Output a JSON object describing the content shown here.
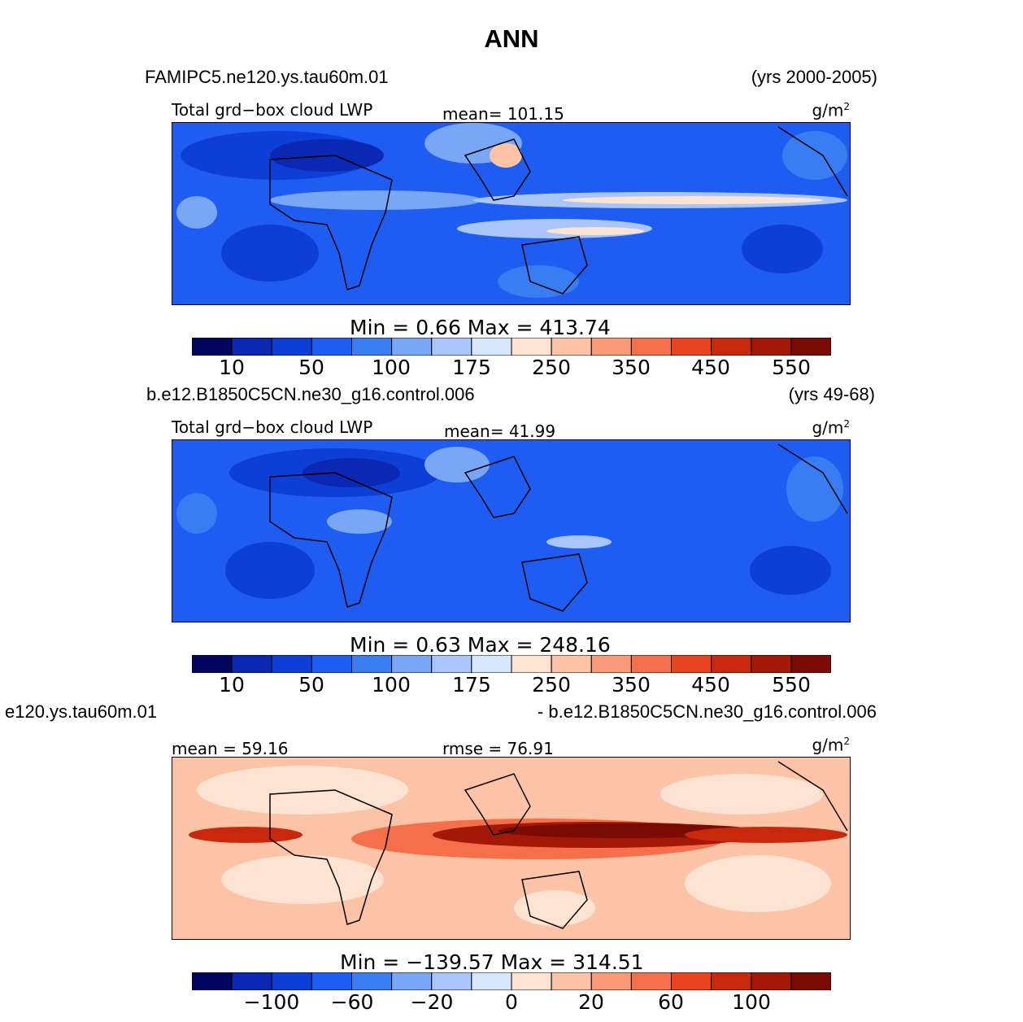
{
  "title": "ANN",
  "colorbar_colors": [
    "#03045e",
    "#0a28b4",
    "#0d3ed6",
    "#1f5cf2",
    "#3a7cf2",
    "#7aa6f6",
    "#a9c5fa",
    "#d6e6fd",
    "#fde3d1",
    "#fcc3a6",
    "#f99b78",
    "#f5704a",
    "#ea4320",
    "#c9280c",
    "#a31806",
    "#7a0a04"
  ],
  "panels": [
    {
      "case_left": "FAMIPC5.ne120.ys.tau60m.01",
      "case_right": "(yrs 2000-2005)",
      "label_left": "Total grd−box cloud LWP",
      "label_center": "mean=  101.15",
      "units": "g/m",
      "units_sup": "2",
      "minmax": "Min  =    0.66  Max  =  413.74",
      "ticks": [
        "10",
        "50",
        "100",
        "175",
        "250",
        "350",
        "450",
        "550"
      ],
      "map_style": "blue-high"
    },
    {
      "case_left": "b.e12.B1850C5CN.ne30_g16.control.006",
      "case_right": "(yrs 49-68)",
      "label_left": "Total grd−box cloud LWP",
      "label_center": "mean=   41.99",
      "units": "g/m",
      "units_sup": "2",
      "minmax": "Min  =    0.63  Max  =  248.16",
      "ticks": [
        "10",
        "50",
        "100",
        "175",
        "250",
        "350",
        "450",
        "550"
      ],
      "map_style": "blue-low"
    },
    {
      "case_left": "e120.ys.tau60m.01",
      "case_right": "- b.e12.B1850C5CN.ne30_g16.control.006",
      "label_left": "mean  =   59.16",
      "label_center": "rmse  =   76.91",
      "units": "g/m",
      "units_sup": "2",
      "minmax": "Min  =  −139.57  Max  =  314.51",
      "ticks": [
        "−100",
        "−60",
        "−20",
        "0",
        "20",
        "60",
        "100"
      ],
      "map_style": "diff"
    }
  ]
}
